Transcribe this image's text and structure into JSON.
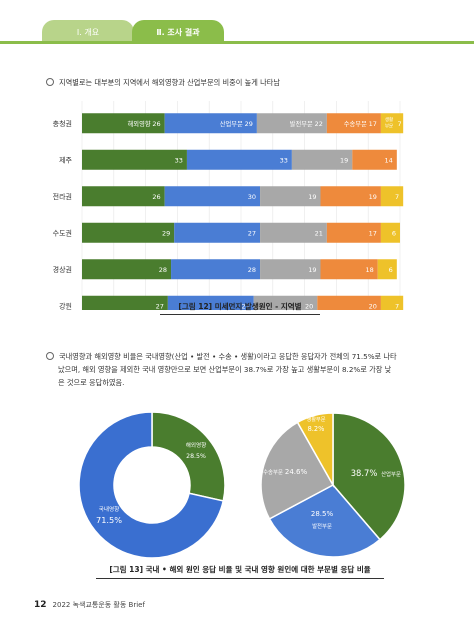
{
  "header": {
    "tab1": "Ⅰ. 개요",
    "tab2": "Ⅱ. 조사 결과"
  },
  "text": {
    "bullet1": "지역별로는 대부분의 지역에서 해외영향과 산업부문의 비중이 높게 나타남",
    "bullet2_line1": "국내영향과 해외영향 비율은 국내영향(산업 • 발전 • 수송 • 생활)이라고 응답한 응답자가 전체의 71.5%로 나타",
    "bullet2_line2": "났으며, 해외 영향을 제외한 국내 영향만으로 보면 산업부문이 38.7%로 가장 높고 생활부문이 8.2%로 가장 낮",
    "bullet2_line3": "은 것으로 응답하였음."
  },
  "captions": {
    "fig12": "[그림 12] 미세먼지 발생원인 - 지역별",
    "fig13": "[그림 13] 국내 • 해외 원인 응답 비율 및 국내 영향 원인에 대한 부문별 응답 비율"
  },
  "footer": {
    "page": "12",
    "title": "2022 녹색교통운동 활동 Brief"
  },
  "colors": {
    "overseas": "#4a7d2e",
    "industry": "#4a7dd4",
    "power": "#a8a8a8",
    "transport": "#ee8a3c",
    "living": "#eec22a",
    "donut_domestic": "#3a6fd0",
    "pie_power": "#4a7dd4",
    "pie_transport": "#a8a8a8",
    "pie_living": "#eec22a",
    "pie_industry": "#4a7d2e"
  },
  "chart_data": [
    {
      "type": "bar",
      "orientation": "horizontal",
      "stacked": "100%",
      "categories": [
        "충청권",
        "제주",
        "전라권",
        "수도권",
        "경상권",
        "강원"
      ],
      "series": [
        {
          "name": "해외영향",
          "values": [
            26,
            33,
            26,
            29,
            28,
            27
          ]
        },
        {
          "name": "산업부문",
          "values": [
            29,
            33,
            30,
            27,
            28,
            27
          ]
        },
        {
          "name": "발전부문",
          "values": [
            22,
            19,
            19,
            21,
            19,
            20
          ]
        },
        {
          "name": "수송부문",
          "values": [
            17,
            14,
            19,
            17,
            18,
            20
          ]
        },
        {
          "name": "생활부문",
          "values": [
            7,
            0,
            7,
            6,
            6,
            7
          ]
        }
      ],
      "xticks": [
        "0%",
        "10%",
        "20%",
        "30%",
        "40%",
        "50%",
        "60%",
        "70%",
        "80%",
        "90%",
        "100%"
      ],
      "xlim": [
        0,
        100
      ],
      "legend": "inline-labels-first-row"
    },
    {
      "type": "pie",
      "donut": true,
      "slices": [
        {
          "label": "해외영향",
          "value": 28.5,
          "text": "28.5%"
        },
        {
          "label": "국내영향",
          "value": 71.5,
          "text": "71.5%"
        }
      ]
    },
    {
      "type": "pie",
      "slices": [
        {
          "label": "산업부문",
          "value": 38.7,
          "text": "38.7%"
        },
        {
          "label": "발전부문",
          "value": 28.5,
          "text": "28.5%"
        },
        {
          "label": "수송부문",
          "value": 24.6,
          "text": "24.6%"
        },
        {
          "label": "생활부문",
          "value": 8.2,
          "text": "8.2%"
        }
      ]
    }
  ]
}
